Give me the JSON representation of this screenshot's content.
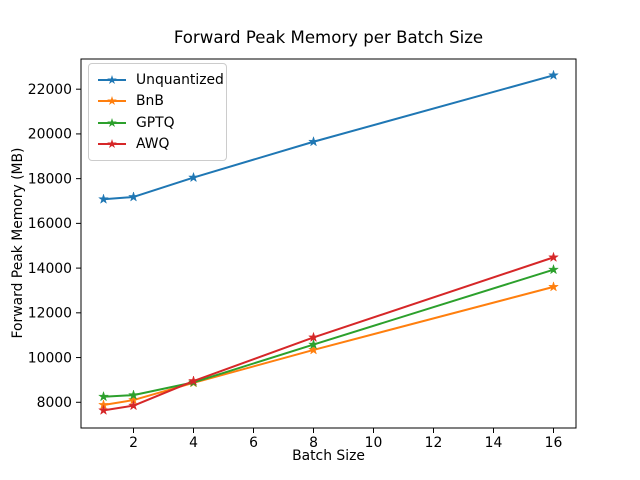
{
  "chart_data": {
    "type": "line",
    "title": "Forward Peak Memory per Batch Size",
    "xlabel": "Batch Size",
    "ylabel": "Forward Peak Memory (MB)",
    "x": [
      1,
      2,
      4,
      8,
      16
    ],
    "series": [
      {
        "name": "Unquantized",
        "color": "#1f77b4",
        "marker": "star",
        "values": [
          17080,
          17180,
          18050,
          19650,
          22620
        ]
      },
      {
        "name": "BnB",
        "color": "#ff7f0e",
        "marker": "star",
        "values": [
          7880,
          8100,
          8870,
          10340,
          13160
        ]
      },
      {
        "name": "GPTQ",
        "color": "#2ca02c",
        "marker": "star",
        "values": [
          8250,
          8320,
          8890,
          10580,
          13930
        ]
      },
      {
        "name": "AWQ",
        "color": "#d62728",
        "marker": "star",
        "values": [
          7640,
          7850,
          8950,
          10900,
          14480
        ]
      }
    ],
    "xticks": [
      2,
      4,
      6,
      8,
      10,
      12,
      14,
      16
    ],
    "yticks": [
      8000,
      10000,
      12000,
      14000,
      16000,
      18000,
      20000,
      22000
    ],
    "xlim": [
      0.25,
      16.75
    ],
    "ylim": [
      6850,
      23350
    ],
    "grid": false,
    "legend_position": "upper left",
    "axes_color": "#000000",
    "background_color": "#ffffff",
    "line_width": 2,
    "marker_size": 5
  }
}
